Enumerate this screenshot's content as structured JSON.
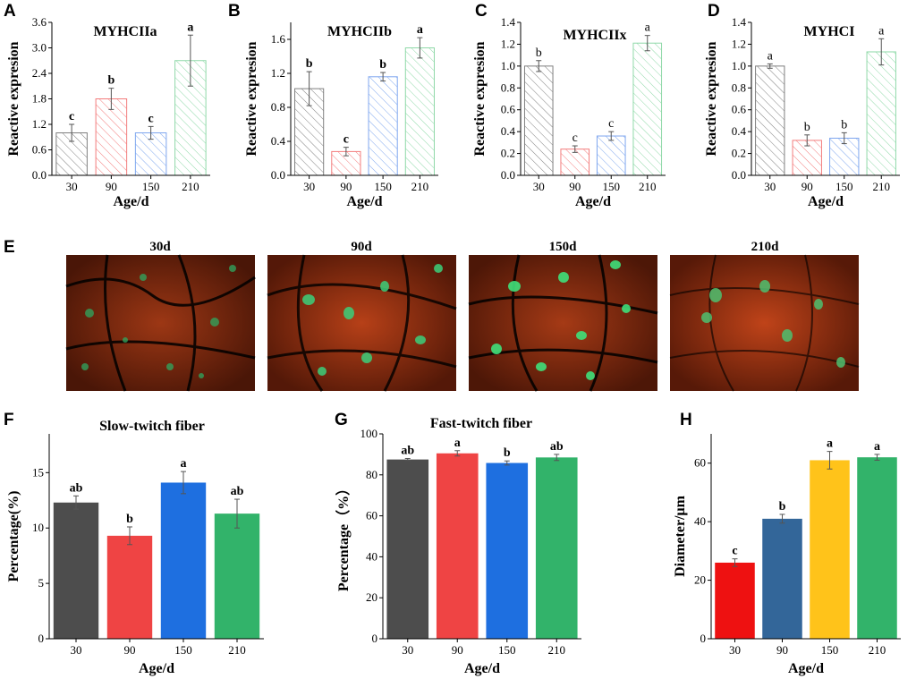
{
  "colors": {
    "gray": "#4d4d4d",
    "red": "#ef4444",
    "blue": "#1e6fe0",
    "green": "#32b36a",
    "darkblue": "#336699",
    "yellow": "#ffc31a",
    "brightred": "#ee1111",
    "hatch_gray": "#7f7f7f",
    "hatch_red": "#f37d7d",
    "hatch_blue": "#7fa7ef",
    "hatch_green": "#8fd9a8"
  },
  "image_row": {
    "label": "E",
    "images": [
      {
        "title": "30d",
        "content": "muscle fiber immunofluorescence"
      },
      {
        "title": "90d",
        "content": "muscle fiber immunofluorescence"
      },
      {
        "title": "150d",
        "content": "muscle fiber immunofluorescence"
      },
      {
        "title": "210d",
        "content": "muscle fiber immunofluorescence"
      }
    ]
  },
  "chart_data": [
    {
      "panel": "A",
      "type": "bar",
      "style": "hatched",
      "title": "MYHCIIa",
      "xlabel": "Age/d",
      "ylabel": "Reactive expresion",
      "categories": [
        "30",
        "90",
        "150",
        "210"
      ],
      "values": [
        1.0,
        1.8,
        1.0,
        2.7
      ],
      "errors": [
        0.2,
        0.25,
        0.15,
        0.6
      ],
      "letters": [
        "c",
        "b",
        "c",
        "a"
      ],
      "ylim": [
        0,
        3.6
      ],
      "yticks": [
        "0.0",
        "0.6",
        "1.2",
        "1.8",
        "2.4",
        "3.0",
        "3.6"
      ],
      "ytick_values": [
        0,
        0.6,
        1.2,
        1.8,
        2.4,
        3.0,
        3.6
      ],
      "bar_colors": [
        "hatch_gray",
        "hatch_red",
        "hatch_blue",
        "hatch_green"
      ],
      "letters_bold": true
    },
    {
      "panel": "B",
      "type": "bar",
      "style": "hatched",
      "title": "MYHCIIb",
      "xlabel": "Age/d",
      "ylabel": "Reactive expresion",
      "categories": [
        "30",
        "90",
        "150",
        "210"
      ],
      "values": [
        1.02,
        0.28,
        1.16,
        1.5
      ],
      "errors": [
        0.2,
        0.05,
        0.05,
        0.12
      ],
      "letters": [
        "b",
        "c",
        "b",
        "a"
      ],
      "ylim": [
        0,
        1.8
      ],
      "yticks": [
        "0.0",
        "0.4",
        "0.8",
        "1.2",
        "1.6"
      ],
      "ytick_values": [
        0,
        0.4,
        0.8,
        1.2,
        1.6
      ],
      "bar_colors": [
        "hatch_gray",
        "hatch_red",
        "hatch_blue",
        "hatch_green"
      ],
      "letters_bold": true
    },
    {
      "panel": "C",
      "type": "bar",
      "style": "hatched",
      "title": "MYHCIIx",
      "xlabel": "Age/d",
      "ylabel": "Reactive expresion",
      "categories": [
        "30",
        "90",
        "150",
        "210"
      ],
      "values": [
        1.0,
        0.24,
        0.36,
        1.21
      ],
      "errors": [
        0.05,
        0.03,
        0.04,
        0.07
      ],
      "letters": [
        "b",
        "c",
        "c",
        "a"
      ],
      "ylim": [
        0,
        1.4
      ],
      "yticks": [
        "0.0",
        "0.2",
        "0.4",
        "0.6",
        "0.8",
        "1.0",
        "1.2",
        "1.4"
      ],
      "ytick_values": [
        0,
        0.2,
        0.4,
        0.6,
        0.8,
        1.0,
        1.2,
        1.4
      ],
      "bar_colors": [
        "hatch_gray",
        "hatch_red",
        "hatch_blue",
        "hatch_green"
      ],
      "letters_bold": false
    },
    {
      "panel": "D",
      "type": "bar",
      "style": "hatched",
      "title": "MYHCI",
      "xlabel": "Age/d",
      "ylabel": "Reactive expresion",
      "categories": [
        "30",
        "90",
        "150",
        "210"
      ],
      "values": [
        1.0,
        0.32,
        0.34,
        1.13
      ],
      "errors": [
        0.02,
        0.05,
        0.05,
        0.12
      ],
      "letters": [
        "a",
        "b",
        "b",
        "a"
      ],
      "ylim": [
        0,
        1.4
      ],
      "yticks": [
        "0.0",
        "0.2",
        "0.4",
        "0.6",
        "0.8",
        "1.0",
        "1.2",
        "1.4"
      ],
      "ytick_values": [
        0,
        0.2,
        0.4,
        0.6,
        0.8,
        1.0,
        1.2,
        1.4
      ],
      "bar_colors": [
        "hatch_gray",
        "hatch_red",
        "hatch_blue",
        "hatch_green"
      ],
      "letters_bold": false
    },
    {
      "panel": "F",
      "type": "bar",
      "style": "solid",
      "title": "Slow-twitch fiber",
      "xlabel": "Age/d",
      "ylabel": "Percentage(%)",
      "categories": [
        "30",
        "90",
        "150",
        "210"
      ],
      "values": [
        12.3,
        9.3,
        14.1,
        11.3
      ],
      "errors": [
        0.6,
        0.8,
        1.0,
        1.3
      ],
      "letters": [
        "ab",
        "b",
        "a",
        "ab"
      ],
      "ylim": [
        0,
        18.5
      ],
      "yticks": [
        "0",
        "5",
        "10",
        "15"
      ],
      "ytick_values": [
        0,
        5,
        10,
        15
      ],
      "bar_colors": [
        "gray",
        "red",
        "blue",
        "green"
      ],
      "letters_bold": true
    },
    {
      "panel": "G",
      "type": "bar",
      "style": "solid",
      "title": "Fast-twitch fiber",
      "xlabel": "Age/d",
      "ylabel": "Percentage（%）",
      "categories": [
        "30",
        "90",
        "150",
        "210"
      ],
      "values": [
        87.5,
        90.5,
        85.8,
        88.5
      ],
      "errors": [
        0.5,
        1.3,
        1.0,
        1.5
      ],
      "letters": [
        "ab",
        "a",
        "b",
        "ab"
      ],
      "ylim": [
        0,
        100
      ],
      "yticks": [
        "0",
        "20",
        "40",
        "60",
        "80",
        "100"
      ],
      "ytick_values": [
        0,
        20,
        40,
        60,
        80,
        100
      ],
      "bar_colors": [
        "gray",
        "red",
        "blue",
        "green"
      ],
      "letters_bold": true
    },
    {
      "panel": "H",
      "type": "bar",
      "style": "solid",
      "title": "",
      "xlabel": "Age/d",
      "ylabel": "Diameter/μm",
      "categories": [
        "30",
        "90",
        "150",
        "210"
      ],
      "values": [
        26,
        41,
        61,
        62
      ],
      "errors": [
        1.3,
        1.5,
        3.0,
        1.0
      ],
      "letters": [
        "c",
        "b",
        "a",
        "a"
      ],
      "ylim": [
        0,
        70
      ],
      "yticks": [
        "0",
        "20",
        "40",
        "60"
      ],
      "ytick_values": [
        0,
        20,
        40,
        60
      ],
      "bar_colors": [
        "brightred",
        "darkblue",
        "yellow",
        "green"
      ],
      "letters_bold": true
    }
  ]
}
